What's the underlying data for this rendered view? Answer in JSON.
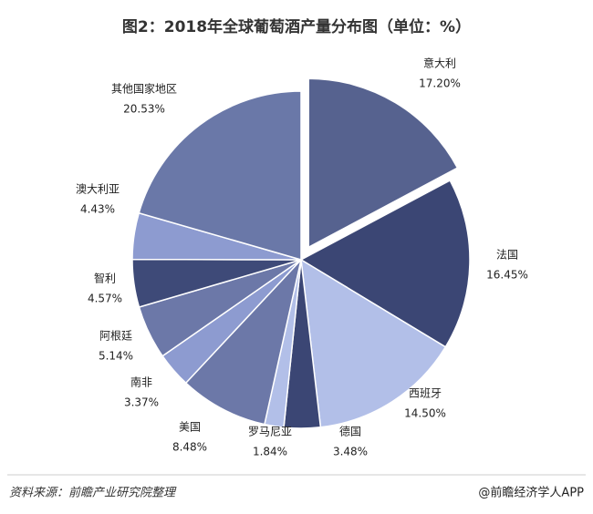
{
  "chart_data": {
    "type": "pie",
    "title": "图2：2018年全球葡萄酒产量分布图（单位：%）",
    "categories": [
      "意大利",
      "法国",
      "西班牙",
      "德国",
      "罗马尼亚",
      "美国",
      "南非",
      "阿根廷",
      "智利",
      "澳大利亚",
      "其他国家地区"
    ],
    "values": [
      17.2,
      16.45,
      14.5,
      3.48,
      1.84,
      8.48,
      3.37,
      5.14,
      4.57,
      4.43,
      20.53
    ],
    "value_labels": [
      "17.20%",
      "16.45%",
      "14.50%",
      "3.48%",
      "1.84%",
      "8.48%",
      "3.37%",
      "5.14%",
      "4.57%",
      "4.43%",
      "20.53%"
    ],
    "colors": [
      "#56628f",
      "#3b4674",
      "#b2bfe8",
      "#3b4674",
      "#b2bfe8",
      "#6c78a8",
      "#8d9bd0",
      "#6c78a8",
      "#3e4a78",
      "#8d9bd0",
      "#6a78a8"
    ],
    "exploded": [
      "意大利"
    ],
    "source": "资料来源：前瞻产业研究院整理",
    "credit": "@前瞻经济学人APP"
  }
}
